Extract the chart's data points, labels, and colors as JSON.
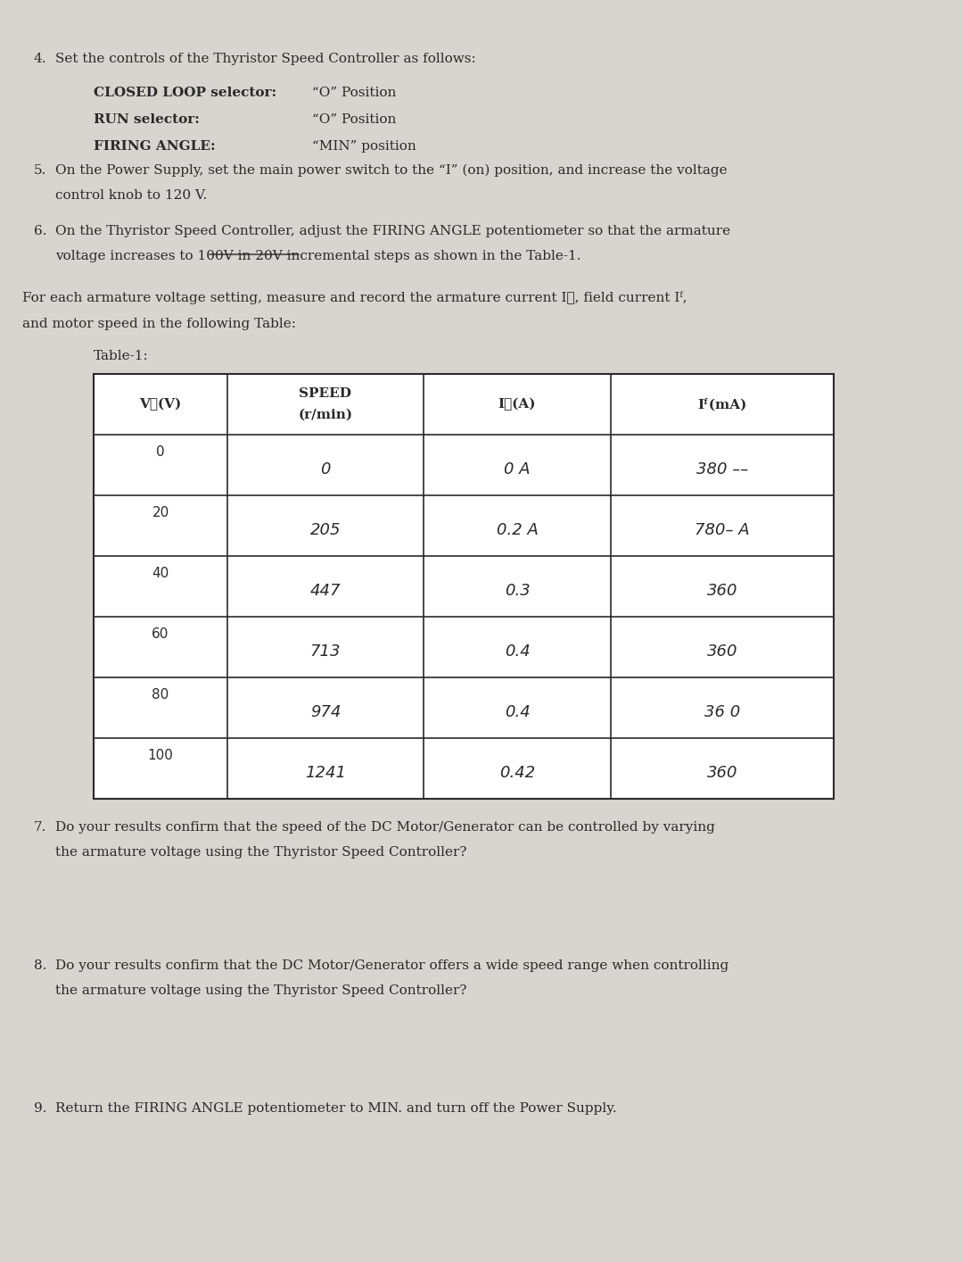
{
  "bg_color": "#d8d5d0",
  "text_color": "#2a2a2a",
  "page_width": 10.8,
  "page_height": 14.14,
  "section4_number": "4.",
  "section4_text": "Set the controls of the Thyristor Speed Controller as follows:",
  "section4_items": [
    [
      "CLOSED LOOP selector:",
      "“O” Position"
    ],
    [
      "RUN selector:",
      "“O” Position"
    ],
    [
      "FIRING ANGLE:",
      "“MIN” position"
    ]
  ],
  "section5_number": "5.",
  "section5_text": "On the Power Supply, set the main power switch to the “I” (on) position, and increase the voltage\ncontrol knob to 120 V.",
  "section6_number": "6.",
  "section6_text": "On the Thyristor Speed Controller, adjust the FIRING ANGLE potentiometer so that the armature\nvoltage increases to 100V in 20V incremental steps as shown in the Table-1.",
  "para_text": "For each armature voltage setting, measure and record the armature current I⁁, field current Iᶠ,\nand motor speed in the following Table:",
  "table_label": "Table-1:",
  "table_headers": [
    "V⁁(V)",
    "SPEED\n(r/min)",
    "I⁁(A)",
    "Iᶠ(mA)"
  ],
  "table_data": [
    [
      "0",
      "0",
      "0 A",
      "380 ––"
    ],
    [
      "20",
      "205",
      "0.2 A",
      "780– A"
    ],
    [
      "40",
      "447",
      "0.3",
      "360"
    ],
    [
      "60",
      "713",
      "0.4",
      "360"
    ],
    [
      "80",
      "974",
      "0.4",
      "36 0"
    ],
    [
      "100",
      "1241",
      "0.42",
      "360"
    ]
  ],
  "section7_number": "7.",
  "section7_text": "Do your results confirm that the speed of the DC Motor/Generator can be controlled by varying\nthe armature voltage using the Thyristor Speed Controller?",
  "section8_number": "8.",
  "section8_text": "Do your results confirm that the DC Motor/Generator offers a wide speed range when controlling\nthe armature voltage using the Thyristor Speed Controller?",
  "section9_number": "9.",
  "section9_text": "Return the FIRING ANGLE potentiometer to MIN. and turn off the Power Supply."
}
